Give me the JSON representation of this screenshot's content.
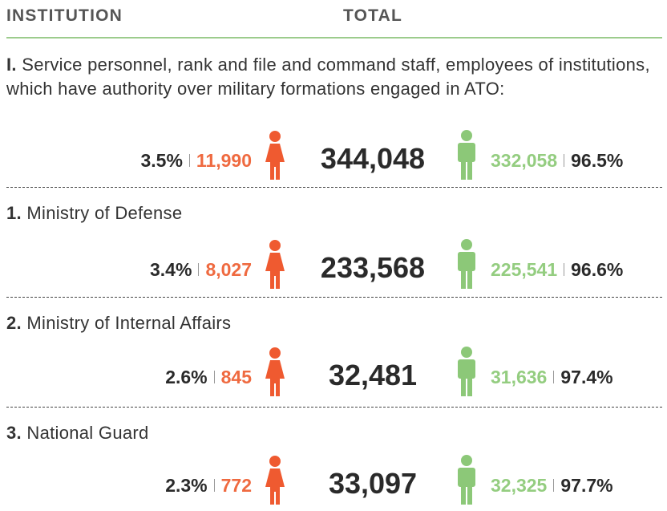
{
  "header": {
    "columns": [
      "INSTITUTION",
      "TOTAL"
    ]
  },
  "rows": [
    {
      "number": "I.",
      "label": "Service personnel, rank and file and command staff, employees of institutions, which have authority over military formations engaged in ATO:",
      "female_percent": "3.5%",
      "female": "11,990",
      "total": "344,048",
      "male": "332,058",
      "male_percent": "96.5%"
    },
    {
      "number": "1.",
      "label": "Ministry of Defense",
      "female_percent": "3.4%",
      "female": "8,027",
      "total": "233,568",
      "male": "225,541",
      "male_percent": "96.6%"
    },
    {
      "number": "2.",
      "label": "Ministry of Internal Affairs",
      "female_percent": "2.6%",
      "female": "845",
      "total": "32,481",
      "male": "31,636",
      "male_percent": "97.4%"
    },
    {
      "number": "3.",
      "label": "National Guard",
      "female_percent": "2.3%",
      "female": "772",
      "total": "33,097",
      "male": "32,325",
      "male_percent": "97.7%"
    }
  ]
}
